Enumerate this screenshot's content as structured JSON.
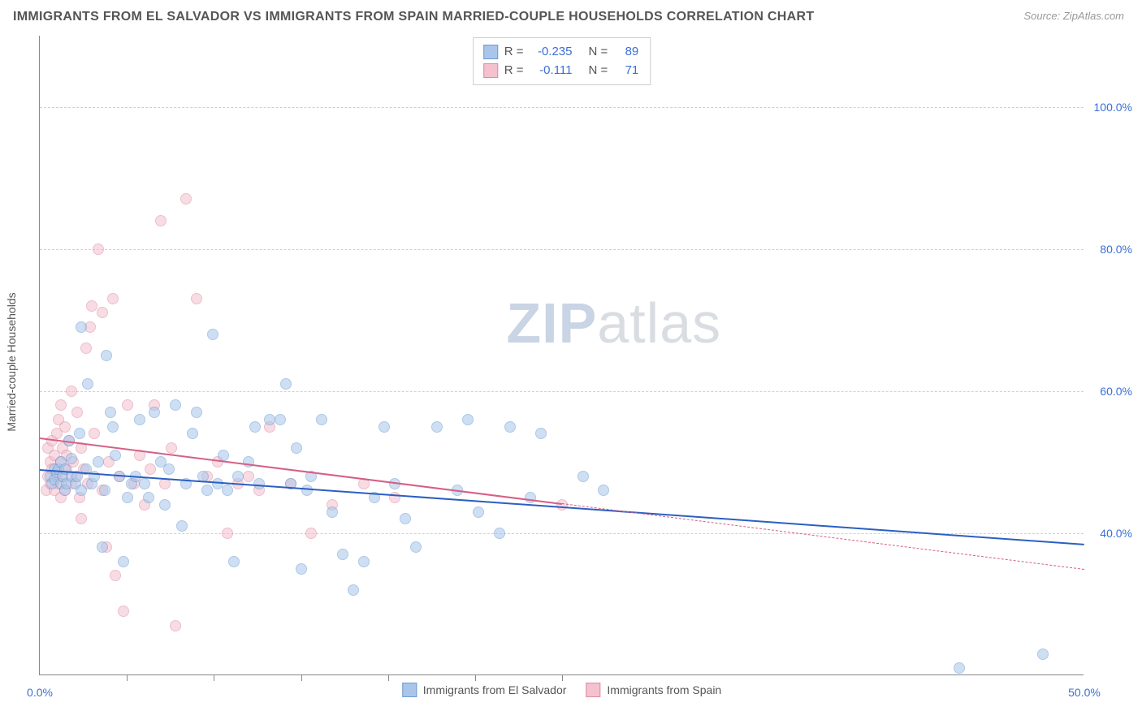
{
  "title": "IMMIGRANTS FROM EL SALVADOR VS IMMIGRANTS FROM SPAIN MARRIED-COUPLE HOUSEHOLDS CORRELATION CHART",
  "source": "Source: ZipAtlas.com",
  "watermark": {
    "bold": "ZIP",
    "rest": "atlas"
  },
  "y_axis_title": "Married-couple Households",
  "chart": {
    "type": "scatter",
    "xlim": [
      0,
      50
    ],
    "ylim": [
      20,
      110
    ],
    "x_ticks": [
      0,
      50
    ],
    "x_tick_labels": [
      "0.0%",
      "50.0%"
    ],
    "x_minor_ticks": [
      4.17,
      8.33,
      12.5,
      16.67,
      20.83,
      25.0
    ],
    "y_ticks": [
      40,
      60,
      80,
      100
    ],
    "y_tick_labels": [
      "40.0%",
      "60.0%",
      "80.0%",
      "100.0%"
    ],
    "background_color": "#ffffff",
    "grid_color": "#d0d0d0",
    "axis_color": "#888888",
    "tick_label_color": "#3b6fd6",
    "marker_radius": 7,
    "marker_opacity": 0.55,
    "series": [
      {
        "name": "Immigrants from El Salvador",
        "color_fill": "#a9c6ea",
        "color_stroke": "#6b9bd1",
        "trend_color": "#2b5fc2",
        "trend_solid_to_x": 50,
        "R": "-0.235",
        "N": "89",
        "trend": {
          "x1": 0,
          "y1": 49.0,
          "x2": 50,
          "y2": 38.5
        },
        "points": [
          [
            0.5,
            48
          ],
          [
            0.6,
            47
          ],
          [
            0.7,
            49
          ],
          [
            0.7,
            47.5
          ],
          [
            0.8,
            48.5
          ],
          [
            0.9,
            49
          ],
          [
            1.0,
            47
          ],
          [
            1.0,
            50
          ],
          [
            1.1,
            48
          ],
          [
            1.2,
            46
          ],
          [
            1.2,
            49
          ],
          [
            1.3,
            47
          ],
          [
            1.4,
            53
          ],
          [
            1.5,
            50.5
          ],
          [
            1.5,
            48
          ],
          [
            1.7,
            47
          ],
          [
            1.8,
            48
          ],
          [
            1.9,
            54
          ],
          [
            2.0,
            69
          ],
          [
            2.0,
            46
          ],
          [
            2.2,
            49
          ],
          [
            2.3,
            61
          ],
          [
            2.5,
            47
          ],
          [
            2.6,
            48
          ],
          [
            2.8,
            50
          ],
          [
            3.0,
            38
          ],
          [
            3.1,
            46
          ],
          [
            3.2,
            65
          ],
          [
            3.4,
            57
          ],
          [
            3.5,
            55
          ],
          [
            3.6,
            51
          ],
          [
            3.8,
            48
          ],
          [
            4.0,
            36
          ],
          [
            4.2,
            45
          ],
          [
            4.4,
            47
          ],
          [
            4.6,
            48
          ],
          [
            4.8,
            56
          ],
          [
            5.0,
            47
          ],
          [
            5.2,
            45
          ],
          [
            5.5,
            57
          ],
          [
            5.8,
            50
          ],
          [
            6.0,
            44
          ],
          [
            6.2,
            49
          ],
          [
            6.5,
            58
          ],
          [
            6.8,
            41
          ],
          [
            7.0,
            47
          ],
          [
            7.3,
            54
          ],
          [
            7.5,
            57
          ],
          [
            7.8,
            48
          ],
          [
            8.0,
            46
          ],
          [
            8.3,
            68
          ],
          [
            8.5,
            47
          ],
          [
            8.8,
            51
          ],
          [
            9.0,
            46
          ],
          [
            9.3,
            36
          ],
          [
            9.5,
            48
          ],
          [
            10.0,
            50
          ],
          [
            10.3,
            55
          ],
          [
            10.5,
            47
          ],
          [
            11.0,
            56
          ],
          [
            11.5,
            56
          ],
          [
            11.8,
            61
          ],
          [
            12.0,
            47
          ],
          [
            12.3,
            52
          ],
          [
            12.5,
            35
          ],
          [
            12.8,
            46
          ],
          [
            13.0,
            48
          ],
          [
            13.5,
            56
          ],
          [
            14.0,
            43
          ],
          [
            14.5,
            37
          ],
          [
            15.0,
            32
          ],
          [
            15.5,
            36
          ],
          [
            16.0,
            45
          ],
          [
            16.5,
            55
          ],
          [
            17.0,
            47
          ],
          [
            17.5,
            42
          ],
          [
            18.0,
            38
          ],
          [
            19.0,
            55
          ],
          [
            20.0,
            46
          ],
          [
            20.5,
            56
          ],
          [
            21.0,
            43
          ],
          [
            22.0,
            40
          ],
          [
            22.5,
            55
          ],
          [
            23.5,
            45
          ],
          [
            24.0,
            54
          ],
          [
            26.0,
            48
          ],
          [
            27.0,
            46
          ],
          [
            44.0,
            21
          ],
          [
            48.0,
            23
          ]
        ]
      },
      {
        "name": "Immigrants from Spain",
        "color_fill": "#f4c1ce",
        "color_stroke": "#de8aa3",
        "trend_color": "#d65f86",
        "trend_solid_to_x": 25,
        "R": "-0.111",
        "N": "71",
        "trend": {
          "x1": 0,
          "y1": 53.5,
          "x2": 50,
          "y2": 35.0
        },
        "points": [
          [
            0.3,
            46
          ],
          [
            0.4,
            48
          ],
          [
            0.4,
            52
          ],
          [
            0.5,
            50
          ],
          [
            0.5,
            47
          ],
          [
            0.6,
            53
          ],
          [
            0.6,
            49
          ],
          [
            0.7,
            51
          ],
          [
            0.7,
            46
          ],
          [
            0.8,
            54
          ],
          [
            0.8,
            48
          ],
          [
            0.9,
            56
          ],
          [
            0.9,
            47
          ],
          [
            1.0,
            50
          ],
          [
            1.0,
            58
          ],
          [
            1.0,
            45
          ],
          [
            1.1,
            52
          ],
          [
            1.1,
            48
          ],
          [
            1.2,
            55
          ],
          [
            1.2,
            46
          ],
          [
            1.3,
            51
          ],
          [
            1.3,
            49
          ],
          [
            1.4,
            53
          ],
          [
            1.5,
            47
          ],
          [
            1.5,
            60
          ],
          [
            1.6,
            50
          ],
          [
            1.7,
            48
          ],
          [
            1.8,
            57
          ],
          [
            1.9,
            45
          ],
          [
            2.0,
            52
          ],
          [
            2.0,
            42
          ],
          [
            2.1,
            49
          ],
          [
            2.2,
            66
          ],
          [
            2.3,
            47
          ],
          [
            2.4,
            69
          ],
          [
            2.5,
            72
          ],
          [
            2.6,
            54
          ],
          [
            2.8,
            80
          ],
          [
            3.0,
            46
          ],
          [
            3.0,
            71
          ],
          [
            3.2,
            38
          ],
          [
            3.3,
            50
          ],
          [
            3.5,
            73
          ],
          [
            3.6,
            34
          ],
          [
            3.8,
            48
          ],
          [
            4.0,
            29
          ],
          [
            4.2,
            58
          ],
          [
            4.5,
            47
          ],
          [
            4.8,
            51
          ],
          [
            5.0,
            44
          ],
          [
            5.3,
            49
          ],
          [
            5.5,
            58
          ],
          [
            5.8,
            84
          ],
          [
            6.0,
            47
          ],
          [
            6.3,
            52
          ],
          [
            6.5,
            27
          ],
          [
            7.0,
            87
          ],
          [
            7.5,
            73
          ],
          [
            8.0,
            48
          ],
          [
            8.5,
            50
          ],
          [
            9.0,
            40
          ],
          [
            9.5,
            47
          ],
          [
            10.0,
            48
          ],
          [
            10.5,
            46
          ],
          [
            11.0,
            55
          ],
          [
            12.0,
            47
          ],
          [
            13.0,
            40
          ],
          [
            14.0,
            44
          ],
          [
            15.5,
            47
          ],
          [
            17.0,
            45
          ],
          [
            25.0,
            44
          ]
        ]
      }
    ]
  },
  "legend_labels": {
    "R_prefix": "R =",
    "N_prefix": "N ="
  }
}
